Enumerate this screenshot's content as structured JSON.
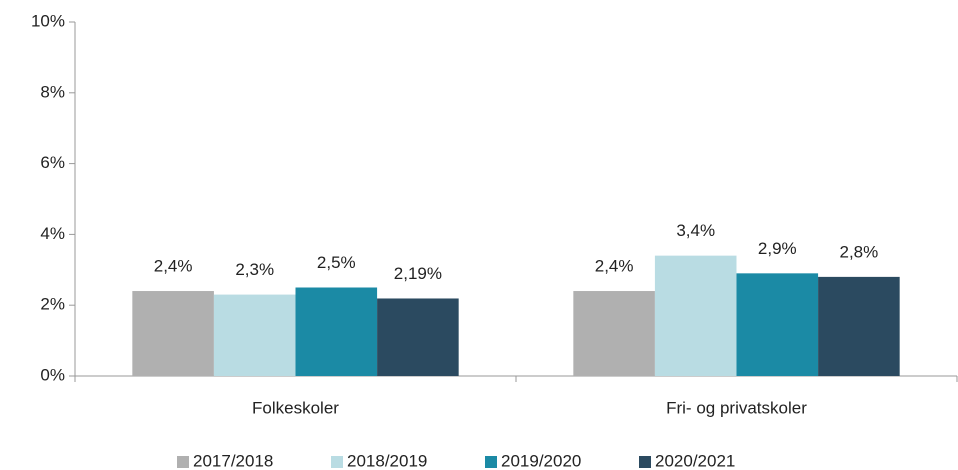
{
  "chart_data": {
    "type": "bar",
    "categories": [
      "Folkeskoler",
      "Fri- og privatskoler"
    ],
    "series": [
      {
        "name": "2017/2018",
        "color": "#b0b0b0",
        "values": [
          2.4,
          2.4
        ],
        "value_labels": [
          "2,4%",
          "2,4%"
        ]
      },
      {
        "name": "2018/2019",
        "color": "#b9dce3",
        "values": [
          2.3,
          3.4
        ],
        "value_labels": [
          "2,3%",
          "3,4%"
        ]
      },
      {
        "name": "2019/2020",
        "color": "#1b8aa5",
        "values": [
          2.5,
          2.9
        ],
        "value_labels": [
          "2,5%",
          "2,9%"
        ]
      },
      {
        "name": "2020/2021",
        "color": "#2b4a60",
        "values": [
          2.19,
          2.8
        ],
        "value_labels": [
          "2,19%",
          "2,8%"
        ]
      }
    ],
    "ylim": [
      0,
      10
    ],
    "yticks": [
      {
        "value": 0,
        "label": "0%"
      },
      {
        "value": 2,
        "label": "2%"
      },
      {
        "value": 4,
        "label": "4%"
      },
      {
        "value": 6,
        "label": "6%"
      },
      {
        "value": 8,
        "label": "8%"
      },
      {
        "value": 10,
        "label": "10%"
      }
    ],
    "grid": false,
    "legend": "bottom"
  }
}
